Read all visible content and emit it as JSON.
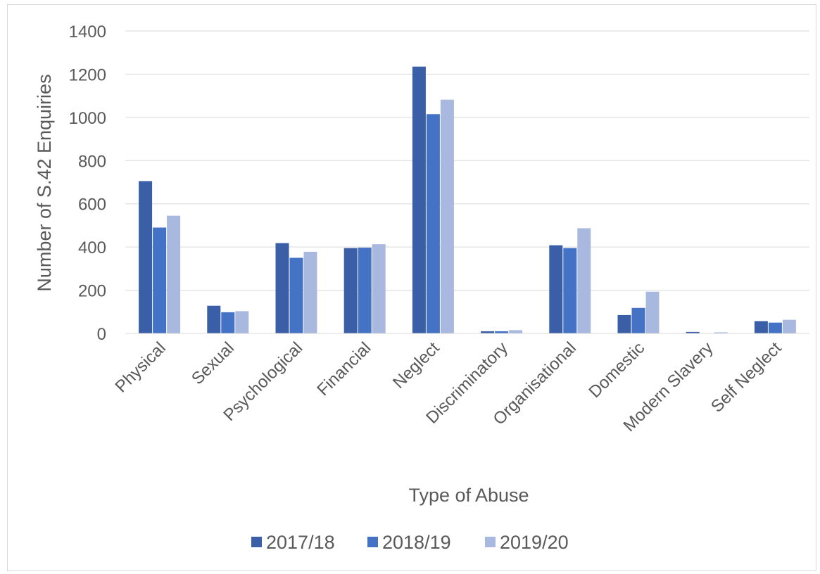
{
  "chart_data": {
    "type": "bar",
    "title": "",
    "xlabel": "Type of Abuse",
    "ylabel": "Number of S.42 Enquiries",
    "ylim": [
      0,
      1400
    ],
    "yticks": [
      0,
      200,
      400,
      600,
      800,
      1000,
      1200,
      1400
    ],
    "grid": true,
    "legend_position": "bottom",
    "categories": [
      "Physical",
      "Sexual",
      "Psychological",
      "Financial",
      "Neglect",
      "Discriminatory",
      "Organisational",
      "Domestic",
      "Modern Slavery",
      "Self Neglect"
    ],
    "series": [
      {
        "name": "2017/18",
        "color": "#3a5fa6",
        "values": [
          705,
          128,
          418,
          395,
          1235,
          10,
          408,
          85,
          7,
          57
        ]
      },
      {
        "name": "2018/19",
        "color": "#4472c4",
        "values": [
          490,
          98,
          350,
          397,
          1015,
          10,
          395,
          118,
          0,
          50
        ]
      },
      {
        "name": "2019/20",
        "color": "#a9b8de",
        "values": [
          545,
          103,
          378,
          413,
          1082,
          15,
          487,
          193,
          5,
          63
        ]
      }
    ]
  }
}
